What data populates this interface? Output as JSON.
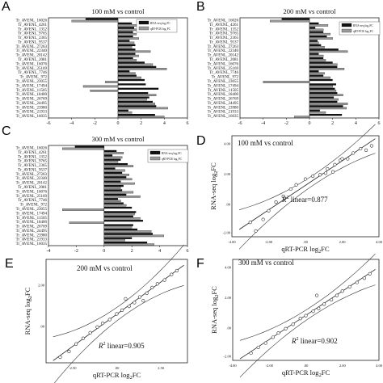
{
  "panel_labels": [
    "A",
    "B",
    "C",
    "D",
    "E",
    "F"
  ],
  "bar_panels": {
    "genes": [
      "Tr_AVENL_16026",
      "Tr_AVENL_4261",
      "Tr_AVENL_1352",
      "Tr_AVENL_9765",
      "Tr_AVENL_2365",
      "Tr_AVENL_9537",
      "Tr_AVENL_27263",
      "Tr_AVENL_22340",
      "Tr_AVENL_20142",
      "Tr_AVENL_2081",
      "Tr_AVENL_16076",
      "Tr_AVENL_25169",
      "Tr_AVENL_7746",
      "Tr_AVENL_972",
      "Tr_AVENL_23055",
      "Tr_AVENL_17494",
      "Tr_AVENL_11505",
      "Tr_AVENL_18400",
      "Tr_AVENL_26769",
      "Tr_AVENL_24495",
      "Tr_AVENL_23980",
      "Tr_AVENL_21933",
      "Tr_AVENL_16035"
    ],
    "legend": [
      "RNA-seq log₂FC",
      "qRT-PCR log₂FC"
    ],
    "colors": {
      "rnaseq": "#111111",
      "qpcr": "#9a9a9a"
    }
  },
  "scatter_panels": {
    "xlabel": "qRT-PCR log₂FC",
    "ylabel": "RNA-seq log₂FC",
    "r2_prefix": "R",
    "r2_suffix": " linear="
  },
  "chart_data": [
    {
      "type": "bar",
      "title": "100 mM vs control",
      "xlim": [
        -6,
        6
      ],
      "ticks": [
        -6,
        -4,
        -2,
        0,
        2,
        4,
        6
      ],
      "series": [
        {
          "name": "RNA-seq log₂FC",
          "values": [
            -2.8,
            1.2,
            1.4,
            1.3,
            1.3,
            1.0,
            1.5,
            1.5,
            1.5,
            1.3,
            2.3,
            3.3,
            1.0,
            1.6,
            2.3,
            2.4,
            3.5,
            2.6,
            2.7,
            3.0,
            3.3,
            0.9,
            3.2
          ]
        },
        {
          "name": "qRT-PCR log₂FC",
          "values": [
            -4.0,
            1.6,
            1.8,
            1.6,
            1.8,
            1.4,
            1.2,
            2.8,
            1.8,
            1.6,
            3.0,
            4.2,
            1.5,
            2.0,
            -1.1,
            -3.0,
            -2.4,
            3.3,
            2.5,
            3.2,
            4.3,
            1.2,
            4.0
          ]
        }
      ]
    },
    {
      "type": "bar",
      "title": "200 mM vs control",
      "xlim": [
        -6,
        6
      ],
      "ticks": [
        -6,
        -4,
        -2,
        0,
        2,
        4,
        6
      ],
      "series": [
        {
          "name": "RNA-seq log₂FC",
          "values": [
            -2.4,
            0.8,
            0.5,
            1.2,
            1.5,
            0.7,
            1.0,
            2.5,
            0.8,
            1.2,
            2.0,
            2.4,
            0.8,
            1.2,
            2.0,
            2.3,
            2.2,
            2.4,
            2.1,
            2.4,
            2.9,
            0.9,
            2.8
          ]
        },
        {
          "name": "qRT-PCR log₂FC",
          "values": [
            -3.4,
            1.6,
            1.2,
            1.8,
            2.0,
            0.8,
            1.3,
            3.3,
            1.2,
            1.4,
            2.4,
            3.0,
            1.3,
            1.8,
            -4.0,
            2.0,
            2.3,
            2.9,
            2.5,
            3.3,
            3.2,
            1.4,
            -1.3
          ]
        }
      ]
    },
    {
      "type": "bar",
      "title": "300 mM vs control",
      "xlim": [
        -4,
        6
      ],
      "ticks": [
        -4,
        -2,
        0,
        2,
        4,
        6
      ],
      "series": [
        {
          "name": "RNA-seq log₂FC",
          "values": [
            -2.1,
            0.9,
            0.6,
            1.2,
            1.7,
            0.8,
            1.3,
            1.6,
            1.2,
            1.4,
            1.3,
            1.6,
            1.0,
            1.4,
            2.0,
            2.3,
            2.1,
            2.8,
            2.1,
            2.4,
            3.5,
            2.0,
            3.1
          ]
        },
        {
          "name": "qRT-PCR log₂FC",
          "values": [
            -3.0,
            1.4,
            1.3,
            1.0,
            2.1,
            1.5,
            1.8,
            2.0,
            2.2,
            1.2,
            2.1,
            2.6,
            1.2,
            1.6,
            -3.0,
            2.2,
            2.6,
            -2.5,
            2.0,
            3.4,
            4.3,
            1.5,
            3.6
          ]
        }
      ]
    },
    {
      "type": "scatter",
      "title": "100 mM vs control",
      "r2": "0.877",
      "xlim": [
        -4.0,
        4.0
      ],
      "ylim": [
        -3.0,
        4.0
      ],
      "xticks": [
        "-4.00",
        "-2.00",
        ".00",
        "2.00",
        "4.00"
      ],
      "yticks": [
        "4.00",
        "2.00",
        ".00",
        "-2.00"
      ],
      "x": [
        -3.0,
        -2.7,
        -2.3,
        -2.0,
        -1.6,
        -1.2,
        -0.8,
        -0.5,
        0.0,
        0.4,
        0.8,
        1.2,
        1.6,
        1.9,
        2.3,
        2.6,
        3.0,
        3.3,
        3.6,
        1.5,
        2.0,
        1.1
      ],
      "y": [
        -2.0,
        -2.6,
        -1.8,
        -1.2,
        -0.6,
        -0.2,
        0.3,
        0.6,
        1.0,
        1.2,
        1.3,
        1.7,
        2.0,
        2.3,
        2.4,
        2.8,
        3.1,
        3.0,
        3.3,
        1.5,
        2.4,
        1.4
      ]
    },
    {
      "type": "scatter",
      "title": "200 mM vs control",
      "r2": "0.905",
      "xlim": [
        -4.0,
        4.0
      ],
      "ylim": [
        -2.0,
        3.5
      ],
      "xticks": [
        "-2.50",
        ".00",
        "2.50"
      ],
      "yticks": [
        "2.00",
        ".00"
      ],
      "x": [
        -3.2,
        -2.7,
        -2.3,
        -1.9,
        -1.5,
        -1.1,
        -0.8,
        -0.4,
        0.0,
        0.3,
        0.7,
        1.0,
        1.3,
        1.7,
        2.0,
        2.3,
        2.7,
        3.1,
        3.4,
        0.5,
        1.5
      ],
      "y": [
        -1.7,
        -1.4,
        -1.0,
        -0.7,
        -0.4,
        -0.1,
        0.1,
        0.3,
        0.6,
        0.8,
        1.0,
        1.2,
        1.5,
        1.7,
        2.0,
        2.2,
        2.4,
        2.7,
        2.9,
        1.4,
        1.3
      ]
    },
    {
      "type": "scatter",
      "title": "300 mM vs control",
      "r2": "0.902",
      "xlim": [
        -4.0,
        4.0
      ],
      "ylim": [
        -2.5,
        4.5
      ],
      "xticks": [
        "-4.00",
        "-2.00",
        ".00",
        "2.00",
        "4.00"
      ],
      "yticks": [
        "4.00",
        "2.00",
        ".00",
        "-2.00"
      ],
      "x": [
        -3.0,
        -2.6,
        -2.2,
        -1.8,
        -1.5,
        -1.1,
        -0.7,
        -0.3,
        0.0,
        0.4,
        0.7,
        1.0,
        1.4,
        1.7,
        2.0,
        2.4,
        2.8,
        3.2,
        3.5,
        0.6
      ],
      "y": [
        -2.0,
        -1.6,
        -1.3,
        -0.9,
        -0.6,
        -0.3,
        0.0,
        0.4,
        0.6,
        0.9,
        1.1,
        1.4,
        1.7,
        2.0,
        2.3,
        2.6,
        2.9,
        3.2,
        3.5,
        2.0
      ]
    }
  ]
}
